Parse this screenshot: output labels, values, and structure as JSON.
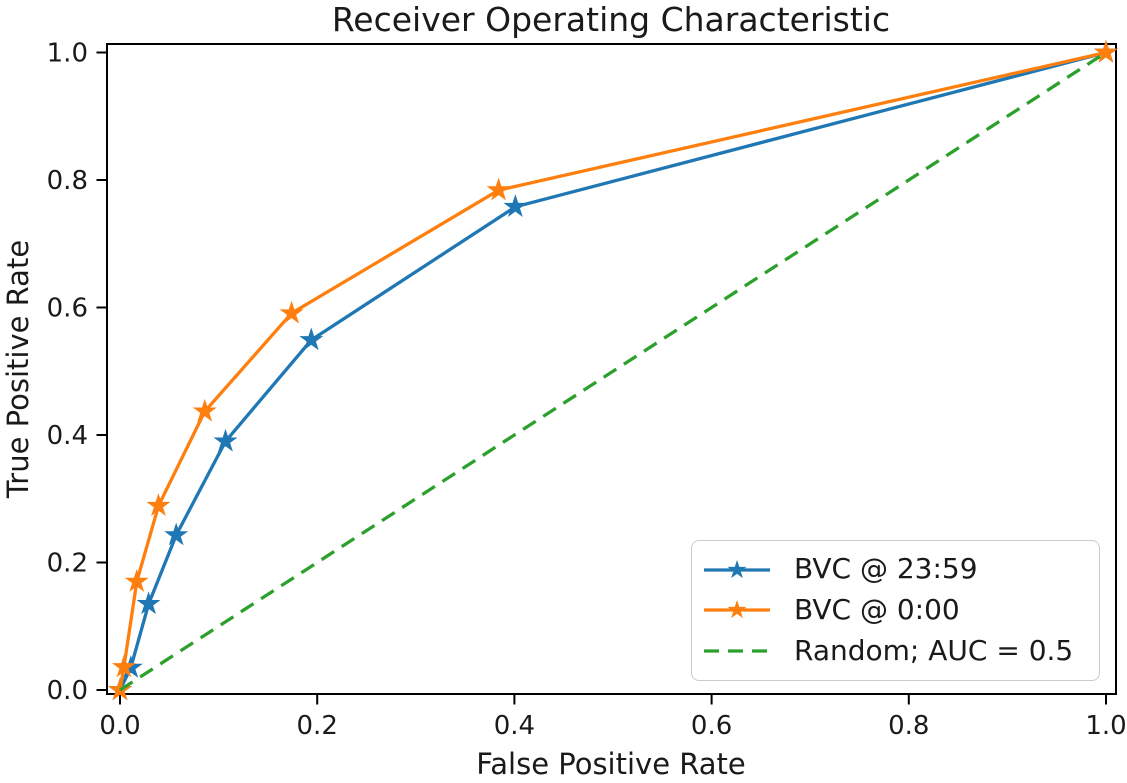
{
  "chart_data": {
    "type": "line",
    "title": "Receiver Operating Characteristic",
    "xlabel": "False Positive Rate",
    "ylabel": "True Positive Rate",
    "xlim": [
      -0.0142,
      1.0112
    ],
    "ylim": [
      -0.0078,
      1.0149
    ],
    "xticks": [
      0.0,
      0.2,
      0.4,
      0.6,
      0.8,
      1.0
    ],
    "yticks": [
      0.0,
      0.2,
      0.4,
      0.6,
      0.8,
      1.0
    ],
    "tick_decimals": 1,
    "grid": false,
    "legend_position": "lower-right",
    "axis_color": "#000000",
    "text_color": "#1a1a1a",
    "legend_border_color": "#cbcbcb",
    "series": [
      {
        "name": "BVC @ 23:59",
        "color": "#1f77b4",
        "linestyle": "solid",
        "marker": "star",
        "points": [
          [
            0.0,
            0.0
          ],
          [
            0.011,
            0.035
          ],
          [
            0.029,
            0.135
          ],
          [
            0.057,
            0.243
          ],
          [
            0.107,
            0.39
          ],
          [
            0.194,
            0.549
          ],
          [
            0.401,
            0.758
          ],
          [
            1.0,
            1.0
          ]
        ]
      },
      {
        "name": "BVC @ 0:00",
        "color": "#ff7f0e",
        "linestyle": "solid",
        "marker": "star",
        "points": [
          [
            0.0,
            0.0
          ],
          [
            0.004,
            0.036
          ],
          [
            0.017,
            0.17
          ],
          [
            0.039,
            0.289
          ],
          [
            0.086,
            0.437
          ],
          [
            0.174,
            0.591
          ],
          [
            0.384,
            0.784
          ],
          [
            1.0,
            1.0
          ]
        ]
      },
      {
        "name": "Random; AUC = 0.5",
        "color": "#2ca02c",
        "linestyle": "dashed",
        "marker": "none",
        "points": [
          [
            0.0,
            0.0
          ],
          [
            1.0,
            1.0
          ]
        ]
      }
    ]
  }
}
